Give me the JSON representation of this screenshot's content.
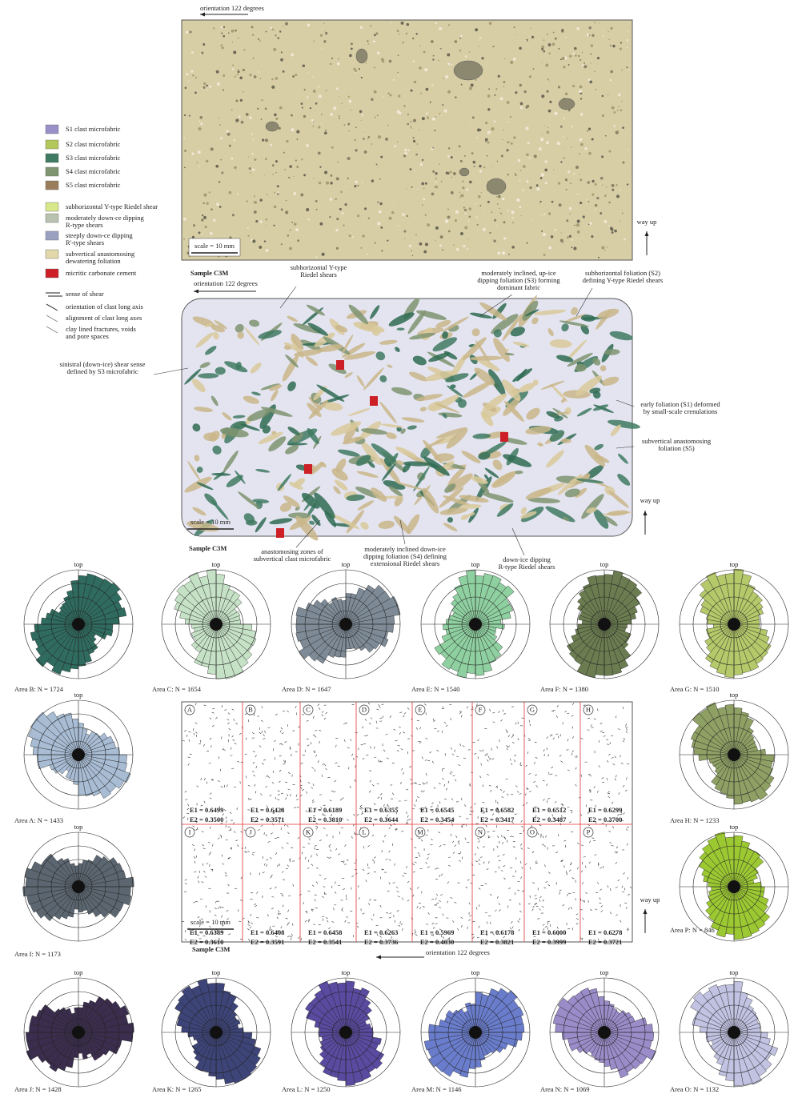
{
  "top_panel": {
    "orientation": "orientation 122 degrees",
    "scale": "scale = 10 mm",
    "sample": "Sample C3M",
    "way_up": "way up"
  },
  "legend": {
    "items": [
      {
        "label": [
          "S1 clast microfabric"
        ],
        "color": "#9a90c8"
      },
      {
        "label": [
          "S2 clast microfabric"
        ],
        "color": "#b3c85a"
      },
      {
        "label": [
          "S3 clast microfabric"
        ],
        "color": "#3f7a62"
      },
      {
        "label": [
          "S4 clast microfabric"
        ],
        "color": "#7f9470"
      },
      {
        "label": [
          "S5 clast microfabric"
        ],
        "color": "#9a7e5c"
      },
      {
        "label": [
          "subhorizontal Y-type Riedel shear"
        ],
        "color": "#d6e88a"
      },
      {
        "label": [
          "moderately down-ce dipping",
          "R-type shears"
        ],
        "color": "#b9c2ae"
      },
      {
        "label": [
          "steeply down-ce dipping",
          "R'-type shears"
        ],
        "color": "#9aa0c0"
      },
      {
        "label": [
          "subvertical anastomosing",
          "dewatering foliation"
        ],
        "color": "#e2d7a8"
      },
      {
        "label": [
          "micritic carbonate cement"
        ],
        "color": "#cc1f26"
      }
    ],
    "symbols": [
      [
        "sense of shear"
      ],
      [
        "orientation of clast long axis"
      ],
      [
        "alignment of clast long axes"
      ],
      [
        "clay lined fractures, voids",
        "and pore spaces"
      ]
    ]
  },
  "interpreted_panel": {
    "orientation": "orientation 122 degrees",
    "scale": "scale = 10 mm",
    "sample": "Sample C3M",
    "way_up": "way up",
    "annotations": [
      [
        "subhorizontal Y-type",
        "Riedel shears"
      ],
      [
        "moderately inclined, up-ice",
        "dipping foliation (S3) forming",
        "dominant fabric"
      ],
      [
        "subhorizontal foliation (S2)",
        "defining Y-type Riedel shears"
      ],
      [
        "sinistral (down-ice) shear sense",
        "defined by S3 microfabric"
      ],
      [
        "early foliation (S1) deformed",
        "by small-scale crenulations"
      ],
      [
        "subvertical anastomosing",
        "foliation (S5)"
      ],
      [
        "anastomosing zones of",
        "subvertical clast microfabric"
      ],
      [
        "moderately inclined down-ice",
        "dipping foliation (S4) defining",
        "extensional Riedel shears"
      ],
      [
        "down-ice dipping",
        "R-type Riedel shears"
      ]
    ]
  },
  "roses": [
    {
      "top": "top",
      "caption": "Area B: N = 1724",
      "color": "#2f6b5e"
    },
    {
      "top": "top",
      "caption": "Area C: N = 1654",
      "color": "#c6e2c6"
    },
    {
      "top": "top",
      "caption": "Area D: N = 1647",
      "color": "#7e8b97"
    },
    {
      "top": "top",
      "caption": "Area E: N = 1540",
      "color": "#8fd0a0"
    },
    {
      "top": "top",
      "caption": "Area F: N = 1380",
      "color": "#6b7d50"
    },
    {
      "top": "top",
      "caption": "Area G: N = 1510",
      "color": "#b5c96a"
    },
    {
      "top": "top",
      "caption": "Area A: N = 1433",
      "color": "#a8bcd4"
    },
    {
      "top": "top",
      "caption": "Area H: N = 1233",
      "color": "#8ea064"
    },
    {
      "top": "top",
      "caption": "Area I: N = 1173",
      "color": "#5b6670"
    },
    {
      "top": "top",
      "caption": "Area P: N = 846",
      "color": "#9cc832"
    },
    {
      "top": "top",
      "caption": "Area J: N = 1428",
      "color": "#3a2d4d"
    },
    {
      "top": "top",
      "caption": "Area K: N = 1265",
      "color": "#3d4478"
    },
    {
      "top": "top",
      "caption": "Area L: N = 1250",
      "color": "#5a4aa0"
    },
    {
      "top": "top",
      "caption": "Area M: N = 1146",
      "color": "#6a7dcc"
    },
    {
      "top": "top",
      "caption": "Area N: N = 1069",
      "color": "#9a8cc8"
    },
    {
      "top": "top",
      "caption": "Area O: N = 1132",
      "color": "#c2c2e2"
    }
  ],
  "grid_panel": {
    "orientation": "orientation 122 degrees",
    "scale": "scale = 10 mm",
    "sample": "Sample C3M",
    "way_up": "way up",
    "cells": [
      {
        "letter": "A",
        "e1": "E1 = 0.6499",
        "e2": "E2 = 0.3500"
      },
      {
        "letter": "B",
        "e1": "E1 = 0.6428",
        "e2": "E2 = 0.3571"
      },
      {
        "letter": "C",
        "e1": "E1 = 0.6189",
        "e2": "E2 = 0.3810"
      },
      {
        "letter": "D",
        "e1": "E1 = 0.6355",
        "e2": "E2 = 0.3644"
      },
      {
        "letter": "E",
        "e1": "E1 = 0.6545",
        "e2": "E2 = 0.3454"
      },
      {
        "letter": "F",
        "e1": "E1 = 0.6582",
        "e2": "E2 = 0.3417"
      },
      {
        "letter": "G",
        "e1": "E1 = 0.6512",
        "e2": "E2 = 0.3487"
      },
      {
        "letter": "H",
        "e1": "E1 = 0.6299",
        "e2": "E2 = 0.3700"
      },
      {
        "letter": "I",
        "e1": "E1 = 0.6389",
        "e2": "E2 = 0.3610"
      },
      {
        "letter": "J",
        "e1": "E1 = 0.6408",
        "e2": "E2 = 0.3591"
      },
      {
        "letter": "K",
        "e1": "E1 = 0.6458",
        "e2": "E2 = 0.3541"
      },
      {
        "letter": "L",
        "e1": "E1 = 0.6263",
        "e2": "E2 = 0.3736"
      },
      {
        "letter": "M",
        "e1": "E1 = 0.5969",
        "e2": "E2 = 0.4030"
      },
      {
        "letter": "N",
        "e1": "E1 = 0.6178",
        "e2": "E2 = 0.3821"
      },
      {
        "letter": "O",
        "e1": "E1 = 0.6000",
        "e2": "E2 = 0.3999"
      },
      {
        "letter": "P",
        "e1": "E1 = 0.6278",
        "e2": "E2 = 0.3721"
      }
    ]
  }
}
